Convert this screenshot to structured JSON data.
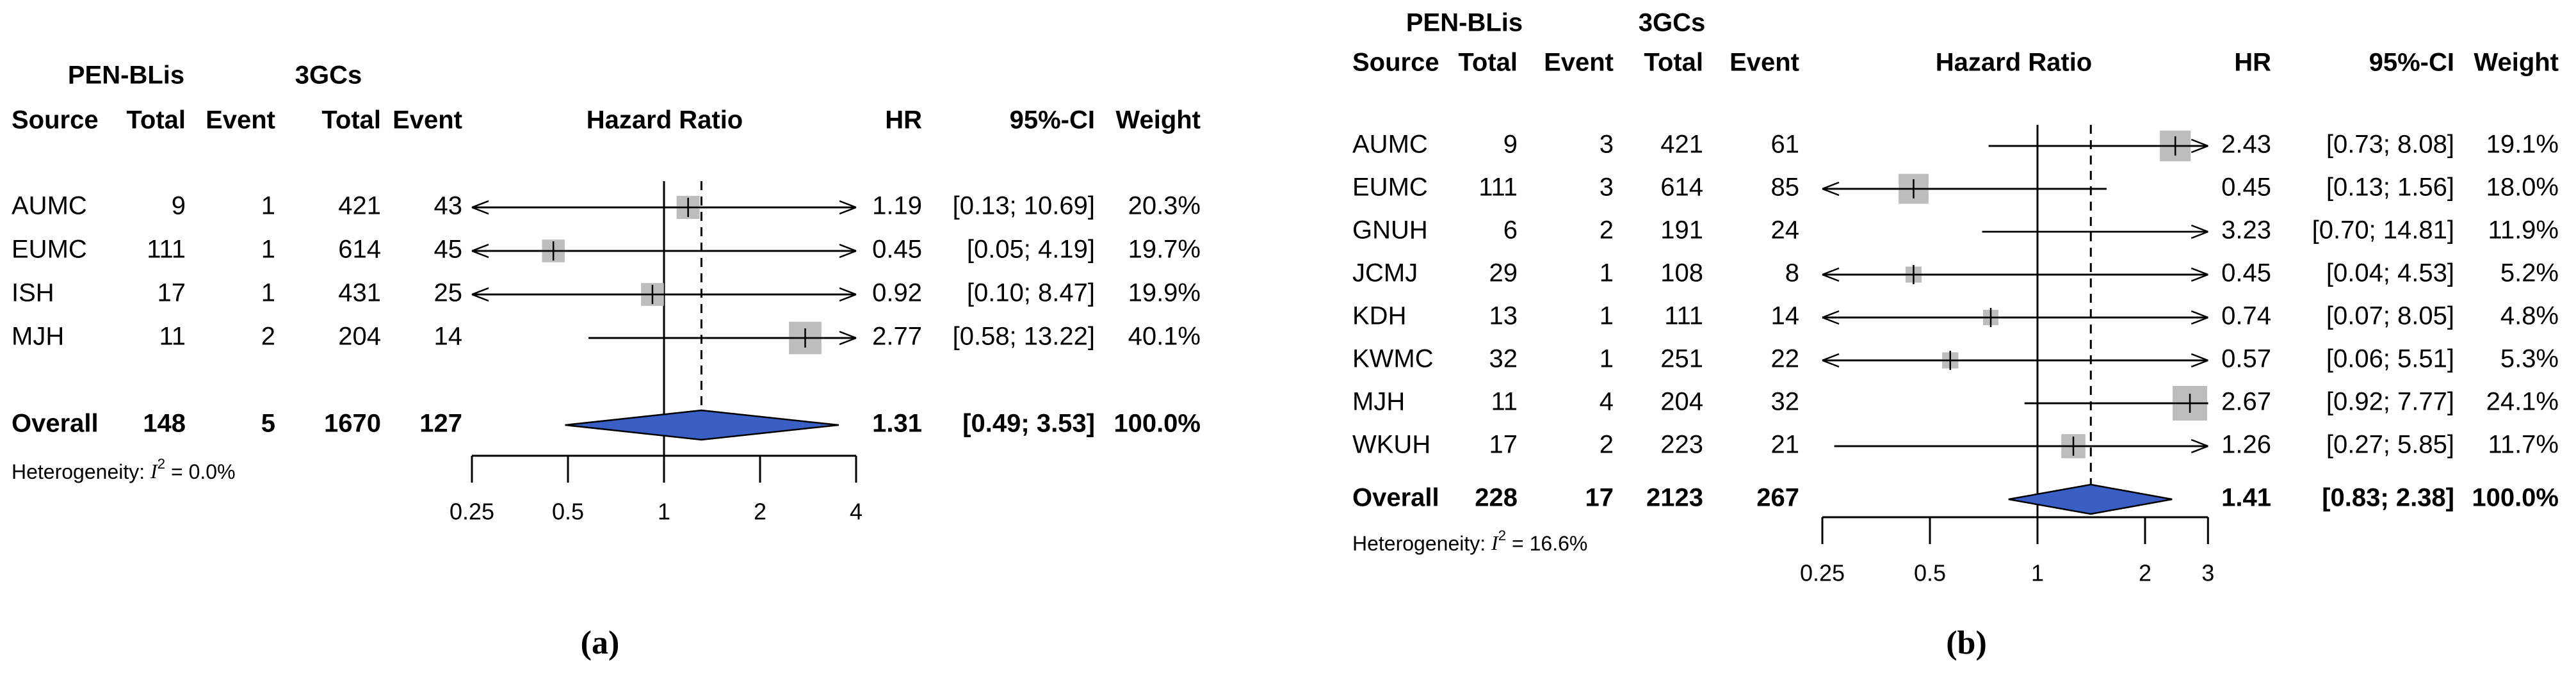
{
  "figure": {
    "captions": [
      "(a)",
      "(b)"
    ],
    "colors": {
      "square": "#bdbdbd",
      "diamond": "#3a5ec4",
      "line": "#000000",
      "text": "#000000"
    }
  },
  "chart_data": [
    {
      "type": "forest",
      "panel": "a",
      "group_headers": [
        "PEN-BLis",
        "3GCs"
      ],
      "columns": [
        "Source",
        "Total",
        "Event",
        "Total",
        "Event"
      ],
      "plot_title": "Hazard Ratio",
      "right_columns": [
        "HR",
        "95%-CI",
        "Weight"
      ],
      "axis_ticks": [
        0.25,
        0.5,
        1,
        2,
        4
      ],
      "axis_tick_labels": [
        "0.25",
        "0.5",
        "1",
        "2",
        "4"
      ],
      "xmin": 0.25,
      "xmax": 4,
      "studies": [
        {
          "source": "AUMC",
          "total1": "9",
          "event1": "1",
          "total2": "421",
          "event2": "43",
          "hr": 1.19,
          "ci_low": 0.13,
          "ci_high": 10.69,
          "weight": 20.3,
          "hr_text": "1.19",
          "ci_text": "[0.13; 10.69]",
          "weight_text": "20.3%"
        },
        {
          "source": "EUMC",
          "total1": "111",
          "event1": "1",
          "total2": "614",
          "event2": "45",
          "hr": 0.45,
          "ci_low": 0.05,
          "ci_high": 4.19,
          "weight": 19.7,
          "hr_text": "0.45",
          "ci_text": "[0.05; 4.19]",
          "weight_text": "19.7%"
        },
        {
          "source": "ISH",
          "total1": "17",
          "event1": "1",
          "total2": "431",
          "event2": "25",
          "hr": 0.92,
          "ci_low": 0.1,
          "ci_high": 8.47,
          "weight": 19.9,
          "hr_text": "0.92",
          "ci_text": "[0.10; 8.47]",
          "weight_text": "19.9%"
        },
        {
          "source": "MJH",
          "total1": "11",
          "event1": "2",
          "total2": "204",
          "event2": "14",
          "hr": 2.77,
          "ci_low": 0.58,
          "ci_high": 13.22,
          "weight": 40.1,
          "hr_text": "2.77",
          "ci_text": "[0.58; 13.22]",
          "weight_text": "40.1%"
        }
      ],
      "overall": {
        "label": "Overall",
        "total1": "148",
        "event1": "5",
        "total2": "1670",
        "event2": "127",
        "hr": 1.31,
        "ci_low": 0.49,
        "ci_high": 3.53,
        "hr_text": "1.31",
        "ci_text": "[0.49; 3.53]",
        "weight_text": "100.0%"
      },
      "heterogeneity": {
        "prefix": "Heterogeneity: ",
        "symbol": "I",
        "exponent": "2",
        "rest": " = 0.0%"
      }
    },
    {
      "type": "forest",
      "panel": "b",
      "group_headers": [
        "PEN-BLis",
        "3GCs"
      ],
      "columns": [
        "Source",
        "Total",
        "Event",
        "Total",
        "Event"
      ],
      "plot_title": "Hazard Ratio",
      "right_columns": [
        "HR",
        "95%-CI",
        "Weight"
      ],
      "axis_ticks": [
        0.25,
        0.5,
        1,
        2,
        3
      ],
      "axis_tick_labels": [
        "0.25",
        "0.5",
        "1",
        "2",
        "3"
      ],
      "xmin": 0.25,
      "xmax": 3,
      "studies": [
        {
          "source": "AUMC",
          "total1": "9",
          "event1": "3",
          "total2": "421",
          "event2": "61",
          "hr": 2.43,
          "ci_low": 0.73,
          "ci_high": 8.08,
          "weight": 19.1,
          "hr_text": "2.43",
          "ci_text": "[0.73; 8.08]",
          "weight_text": "19.1%"
        },
        {
          "source": "EUMC",
          "total1": "111",
          "event1": "3",
          "total2": "614",
          "event2": "85",
          "hr": 0.45,
          "ci_low": 0.13,
          "ci_high": 1.56,
          "weight": 18.0,
          "hr_text": "0.45",
          "ci_text": "[0.13; 1.56]",
          "weight_text": "18.0%"
        },
        {
          "source": "GNUH",
          "total1": "6",
          "event1": "2",
          "total2": "191",
          "event2": "24",
          "hr": 3.23,
          "ci_low": 0.7,
          "ci_high": 14.81,
          "weight": 11.9,
          "hr_text": "3.23",
          "ci_text": "[0.70; 14.81]",
          "weight_text": "11.9%"
        },
        {
          "source": "JCMJ",
          "total1": "29",
          "event1": "1",
          "total2": "108",
          "event2": "8",
          "hr": 0.45,
          "ci_low": 0.04,
          "ci_high": 4.53,
          "weight": 5.2,
          "hr_text": "0.45",
          "ci_text": "[0.04; 4.53]",
          "weight_text": "5.2%"
        },
        {
          "source": "KDH",
          "total1": "13",
          "event1": "1",
          "total2": "111",
          "event2": "14",
          "hr": 0.74,
          "ci_low": 0.07,
          "ci_high": 8.05,
          "weight": 4.8,
          "hr_text": "0.74",
          "ci_text": "[0.07; 8.05]",
          "weight_text": "4.8%"
        },
        {
          "source": "KWMC",
          "total1": "32",
          "event1": "1",
          "total2": "251",
          "event2": "22",
          "hr": 0.57,
          "ci_low": 0.06,
          "ci_high": 5.51,
          "weight": 5.3,
          "hr_text": "0.57",
          "ci_text": "[0.06; 5.51]",
          "weight_text": "5.3%"
        },
        {
          "source": "MJH",
          "total1": "11",
          "event1": "4",
          "total2": "204",
          "event2": "32",
          "hr": 2.67,
          "ci_low": 0.92,
          "ci_high": 7.77,
          "weight": 24.1,
          "hr_text": "2.67",
          "ci_text": "[0.92; 7.77]",
          "weight_text": "24.1%"
        },
        {
          "source": "WKUH",
          "total1": "17",
          "event1": "2",
          "total2": "223",
          "event2": "21",
          "hr": 1.26,
          "ci_low": 0.27,
          "ci_high": 5.85,
          "weight": 11.7,
          "hr_text": "1.26",
          "ci_text": "[0.27; 5.85]",
          "weight_text": "11.7%"
        }
      ],
      "overall": {
        "label": "Overall",
        "total1": "228",
        "event1": "17",
        "total2": "2123",
        "event2": "267",
        "hr": 1.41,
        "ci_low": 0.83,
        "ci_high": 2.38,
        "hr_text": "1.41",
        "ci_text": "[0.83; 2.38]",
        "weight_text": "100.0%"
      },
      "heterogeneity": {
        "prefix": "Heterogeneity: ",
        "symbol": "I",
        "exponent": "2",
        "rest": " = 16.6%"
      }
    }
  ]
}
